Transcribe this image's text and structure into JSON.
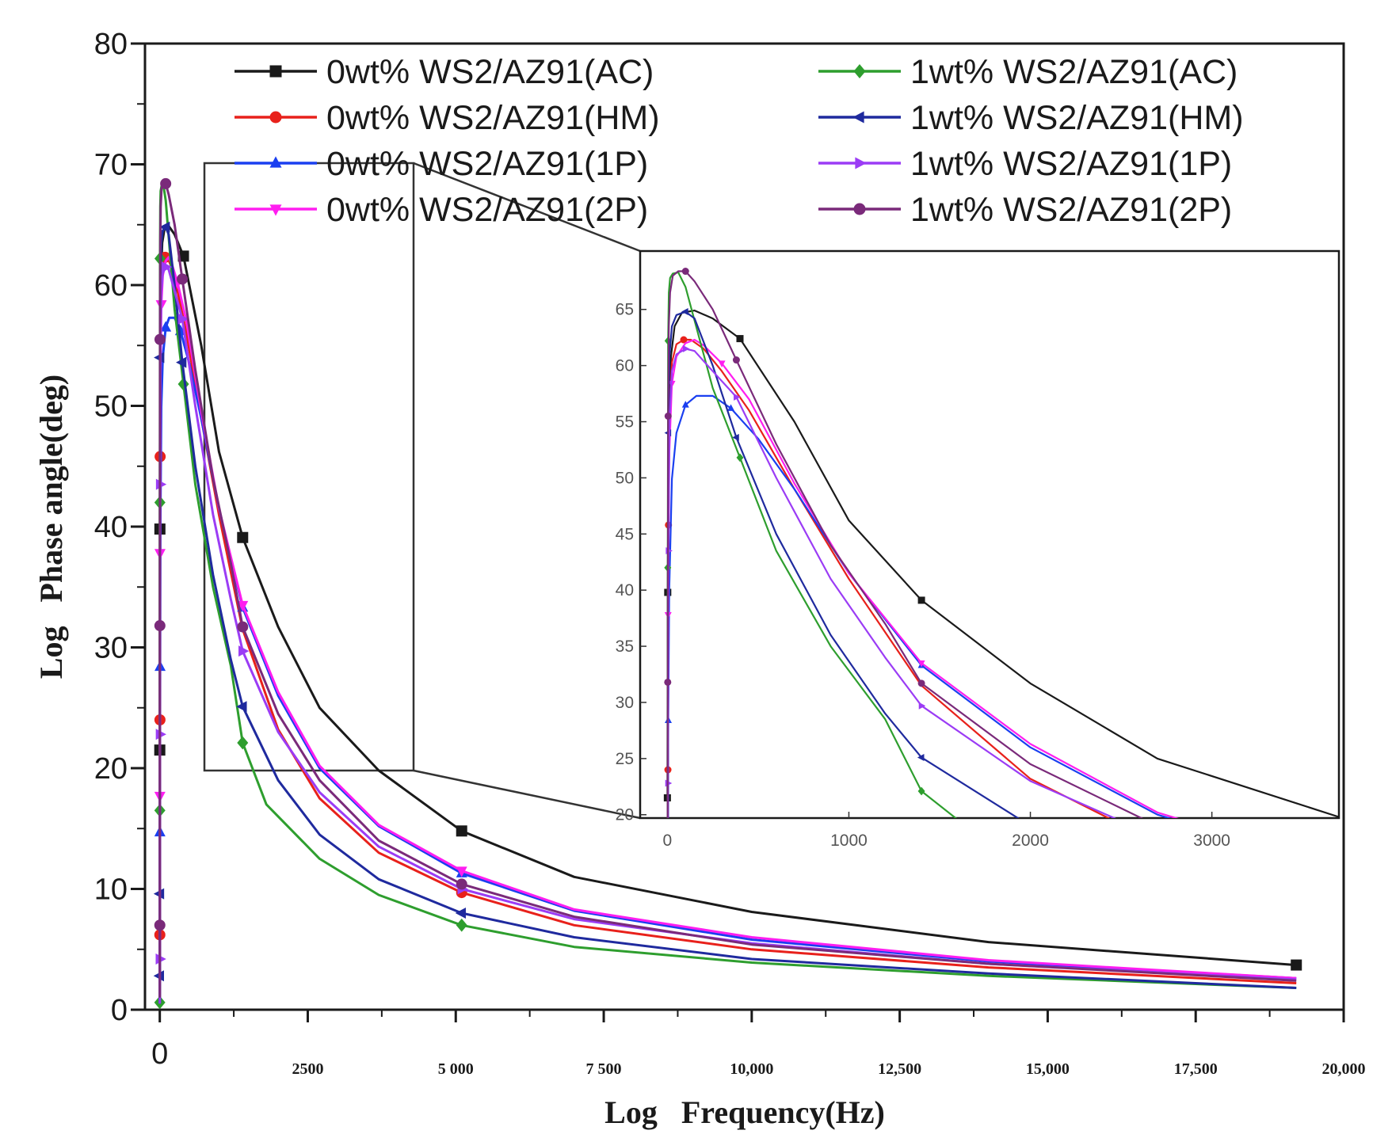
{
  "chart_data": {
    "type": "line",
    "title": "",
    "xlabel": "Log   Frequency(Hz)",
    "ylabel": "Log   Phase angle(deg)",
    "xlim": [
      -250,
      20000
    ],
    "ylim": [
      0,
      80
    ],
    "x_ticks": [
      {
        "value": 0,
        "label": "0"
      },
      {
        "value": 2500,
        "label": "2500"
      },
      {
        "value": 5000,
        "label": "5 000"
      },
      {
        "value": 7500,
        "label": "7 500"
      },
      {
        "value": 10000,
        "label": "10,000"
      },
      {
        "value": 12500,
        "label": "12,500"
      },
      {
        "value": 15000,
        "label": "15,000"
      },
      {
        "value": 17500,
        "label": "17,500"
      },
      {
        "value": 20000,
        "label": "20,000"
      }
    ],
    "y_ticks": [
      {
        "value": 0,
        "label": "0"
      },
      {
        "value": 10,
        "label": "10"
      },
      {
        "value": 20,
        "label": "20"
      },
      {
        "value": 30,
        "label": "30"
      },
      {
        "value": 40,
        "label": "40"
      },
      {
        "value": 50,
        "label": "50"
      },
      {
        "value": 60,
        "label": "60"
      },
      {
        "value": 70,
        "label": "70"
      },
      {
        "value": 80,
        "label": "80"
      }
    ],
    "legend": "top, two columns",
    "series": [
      {
        "name": "0wt% WS2/AZ91(AC)",
        "color": "#1a1a1a",
        "marker": "square",
        "x": [
          0,
          2,
          5,
          10,
          20,
          40,
          80,
          150,
          250,
          400,
          700,
          1000,
          1400,
          2000,
          2700,
          3700,
          5100,
          7000,
          10000,
          14000,
          19200
        ],
        "y": [
          21.5,
          39.8,
          50.5,
          57.0,
          60.8,
          63.5,
          64.7,
          64.9,
          64.2,
          62.4,
          55.0,
          46.2,
          39.1,
          31.7,
          25.0,
          19.8,
          14.8,
          11.0,
          8.1,
          5.6,
          3.7
        ],
        "markers_x": [
          0,
          2,
          400,
          1400,
          5100,
          19200
        ],
        "markers_y": [
          21.5,
          39.8,
          62.4,
          39.1,
          14.8,
          3.7
        ]
      },
      {
        "name": "0wt% WS2/AZ91(HM)",
        "color": "#e8211b",
        "marker": "circle",
        "x": [
          0,
          1,
          3,
          6,
          12,
          25,
          50,
          90,
          130,
          200,
          300,
          450,
          700,
          1000,
          1400,
          2000,
          2700,
          3700,
          5100,
          7000,
          10000,
          14000,
          19200
        ],
        "y": [
          0.8,
          6.2,
          24.0,
          45.8,
          55.5,
          60.3,
          61.9,
          62.3,
          62.3,
          61.5,
          59.5,
          56.0,
          49.0,
          41.0,
          31.5,
          23.2,
          17.5,
          13.0,
          9.7,
          7.0,
          5.0,
          3.5,
          2.2
        ],
        "markers_x": [
          1,
          3,
          6,
          90,
          5100
        ],
        "markers_y": [
          6.2,
          24.0,
          45.8,
          62.3,
          9.7
        ]
      },
      {
        "name": "0wt% WS2/AZ91(1P)",
        "color": "#1a3ff0",
        "marker": "triangle-up",
        "x": [
          0,
          2,
          5,
          10,
          25,
          50,
          100,
          160,
          250,
          350,
          500,
          700,
          1000,
          1400,
          2000,
          2700,
          3700,
          5100,
          7000,
          10000,
          14000,
          19200
        ],
        "y": [
          2.5,
          14.7,
          28.4,
          40.0,
          49.9,
          54.0,
          56.5,
          57.3,
          57.3,
          56.2,
          53.5,
          49.0,
          41.5,
          33.3,
          26.0,
          20.0,
          15.2,
          11.3,
          8.2,
          5.8,
          4.0,
          2.6
        ],
        "markers_x": [
          2,
          5,
          100,
          350,
          1400,
          5100
        ],
        "markers_y": [
          14.7,
          28.4,
          56.5,
          56.2,
          33.3,
          11.3
        ]
      },
      {
        "name": "0wt% WS2/AZ91(2P)",
        "color": "#ff1ef0",
        "marker": "triangle-down",
        "x": [
          0,
          2,
          4,
          10,
          25,
          50,
          100,
          150,
          200,
          300,
          450,
          700,
          1000,
          1400,
          2000,
          2700,
          3700,
          5100,
          7000,
          10000,
          14000,
          19200
        ],
        "y": [
          2.0,
          17.7,
          37.8,
          52.0,
          58.4,
          60.8,
          62.0,
          62.3,
          61.8,
          60.2,
          57.0,
          49.5,
          41.5,
          33.5,
          26.3,
          20.2,
          15.3,
          11.5,
          8.3,
          6.0,
          4.1,
          2.6
        ],
        "markers_x": [
          2,
          4,
          25,
          300,
          1400,
          5100
        ],
        "markers_y": [
          17.7,
          37.8,
          58.4,
          60.2,
          33.5,
          11.5
        ]
      },
      {
        "name": "1wt% WS2/AZ91(AC)",
        "color": "#2e9e2e",
        "marker": "diamond",
        "x": [
          0,
          1,
          2,
          4,
          8,
          15,
          30,
          60,
          100,
          150,
          250,
          400,
          600,
          900,
          1200,
          1400,
          1800,
          2700,
          3700,
          5100,
          7000,
          10000,
          14000,
          19200
        ],
        "y": [
          0.6,
          16.5,
          42.0,
          62.2,
          66.5,
          67.8,
          68.2,
          68.3,
          67.0,
          64.0,
          58.0,
          51.8,
          43.5,
          35.0,
          28.5,
          22.1,
          17.0,
          12.5,
          9.5,
          7.0,
          5.2,
          3.9,
          2.8,
          1.8
        ],
        "markers_x": [
          0,
          1,
          2,
          4,
          400,
          1400,
          5100
        ],
        "markers_y": [
          0.6,
          16.5,
          42.0,
          62.2,
          51.8,
          22.1,
          7.0
        ]
      },
      {
        "name": "1wt% WS2/AZ91(HM)",
        "color": "#1f2a9e",
        "marker": "triangle-left",
        "x": [
          0,
          1,
          3,
          6,
          12,
          25,
          50,
          100,
          150,
          250,
          380,
          600,
          900,
          1200,
          1400,
          2000,
          2700,
          3700,
          5100,
          7000,
          10000,
          14000,
          19200
        ],
        "y": [
          0.5,
          2.8,
          9.6,
          54.0,
          61.0,
          63.5,
          64.5,
          64.8,
          64.2,
          60.0,
          53.6,
          45.0,
          36.0,
          29.0,
          25.1,
          19.0,
          14.5,
          10.8,
          8.0,
          6.0,
          4.2,
          3.0,
          1.8
        ],
        "markers_x": [
          1,
          3,
          6,
          100,
          380,
          1400,
          5100
        ],
        "markers_y": [
          2.8,
          9.6,
          54.0,
          64.8,
          53.6,
          25.1,
          8.0
        ]
      },
      {
        "name": "1wt% WS2/AZ91(1P)",
        "color": "#9b3cf5",
        "marker": "triangle-right",
        "x": [
          0,
          1,
          3,
          6,
          12,
          25,
          50,
          100,
          150,
          250,
          380,
          600,
          900,
          1200,
          1400,
          2000,
          2700,
          3700,
          5100,
          7000,
          10000,
          14000,
          19200
        ],
        "y": [
          0.5,
          4.2,
          22.8,
          43.5,
          55.0,
          59.5,
          61.0,
          61.5,
          61.3,
          59.5,
          57.2,
          50.0,
          41.0,
          34.0,
          29.7,
          23.0,
          18.0,
          13.5,
          10.0,
          7.5,
          5.5,
          3.8,
          2.5
        ],
        "markers_x": [
          1,
          3,
          6,
          100,
          380,
          1400,
          5100
        ],
        "markers_y": [
          4.2,
          22.8,
          43.5,
          61.5,
          57.2,
          29.7,
          10.0
        ]
      },
      {
        "name": "1wt% WS2/AZ91(2P)",
        "color": "#7a2a7a",
        "marker": "circle",
        "x": [
          0,
          1,
          2,
          4,
          8,
          15,
          30,
          60,
          100,
          150,
          250,
          380,
          600,
          900,
          1200,
          1400,
          2000,
          2700,
          3700,
          5100,
          7000,
          10000,
          14000,
          19200
        ],
        "y": [
          1.0,
          7.0,
          31.8,
          55.5,
          63.5,
          66.5,
          68.0,
          68.4,
          68.4,
          67.5,
          65.0,
          60.5,
          53.0,
          44.0,
          37.0,
          31.7,
          24.5,
          19.0,
          14.0,
          10.4,
          7.7,
          5.4,
          3.8,
          2.4
        ],
        "markers_x": [
          1,
          2,
          4,
          100,
          380,
          1400,
          5100
        ],
        "markers_y": [
          7.0,
          31.8,
          55.5,
          68.4,
          60.5,
          31.7,
          10.4
        ]
      }
    ],
    "inset": {
      "type": "line",
      "description": "zoomed view",
      "xlim": [
        -150,
        3700
      ],
      "ylim": [
        19.7,
        70.2
      ],
      "x_ticks": [
        {
          "value": 0,
          "label": "0"
        },
        {
          "value": 1000,
          "label": "1000"
        },
        {
          "value": 2000,
          "label": "2000"
        },
        {
          "value": 3000,
          "label": "3000"
        }
      ],
      "y_ticks": [
        {
          "value": 20,
          "label": "20"
        },
        {
          "value": 25,
          "label": "25"
        },
        {
          "value": 30,
          "label": "30"
        },
        {
          "value": 35,
          "label": "35"
        },
        {
          "value": 40,
          "label": "40"
        },
        {
          "value": 45,
          "label": "45"
        },
        {
          "value": 50,
          "label": "50"
        },
        {
          "value": 55,
          "label": "55"
        },
        {
          "value": 60,
          "label": "60"
        },
        {
          "value": 65,
          "label": "65"
        }
      ],
      "zoom_region": {
        "x": [
          0,
          4000
        ],
        "y": [
          19.7,
          70.2
        ]
      }
    }
  }
}
